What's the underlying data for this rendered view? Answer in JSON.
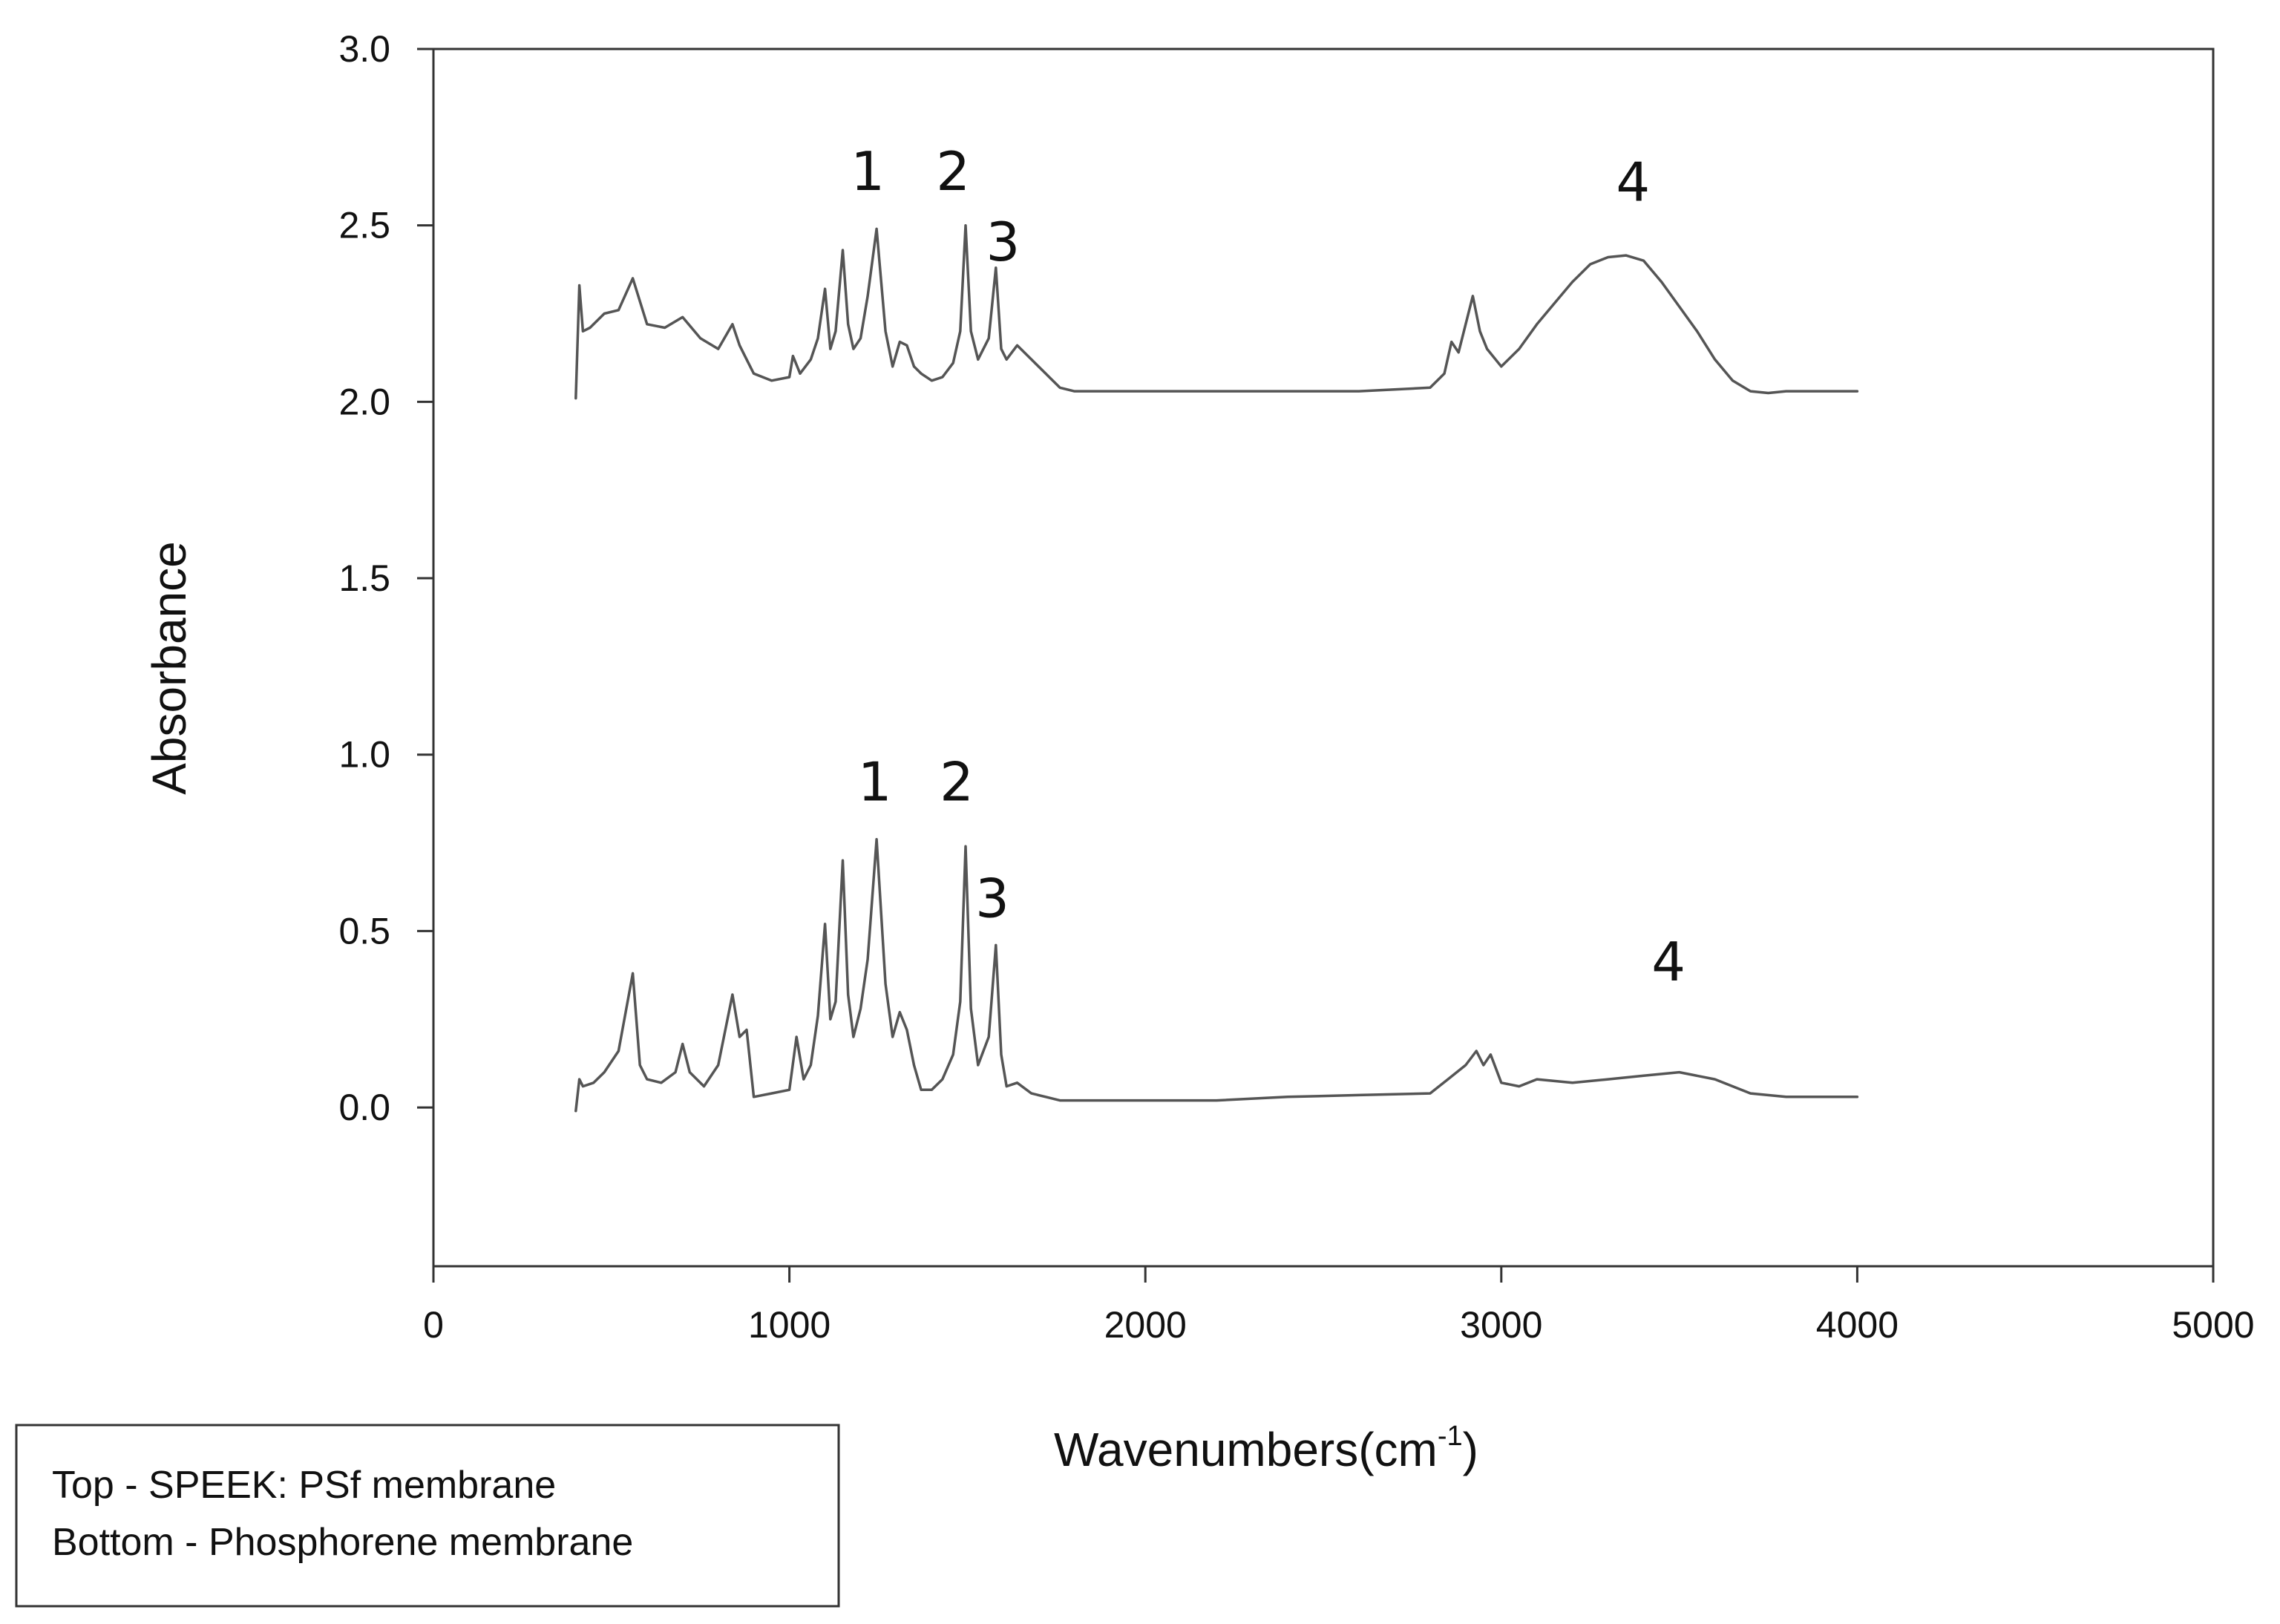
{
  "chart_data": {
    "type": "line",
    "title": "",
    "xlabel": "Wavenumbers(cm",
    "xlabel_sup": "-1",
    "xlabel_suffix": ")",
    "ylabel": "Absorbance",
    "xlim": [
      0,
      5000
    ],
    "ylim": [
      -0.45,
      3.0
    ],
    "xticks": [
      0,
      1000,
      2000,
      3000,
      4000,
      5000
    ],
    "xtick_labels": [
      "0",
      "1000",
      "2000",
      "3000",
      "4000",
      "5000"
    ],
    "yticks": [
      0.0,
      0.5,
      1.0,
      1.5,
      2.0,
      2.5,
      3.0
    ],
    "ytick_labels": [
      "0.0",
      "0.5",
      "1.0",
      "1.5",
      "2.0",
      "2.5",
      "3.0"
    ],
    "grid": false,
    "legend": {
      "placement": "bottom-left",
      "lines": [
        "Top - SPEEK: PSf membrane",
        "Bottom - Phosphorene membrane"
      ]
    },
    "series": [
      {
        "color": "#555555",
        "x": [
          400,
          410,
          420,
          440,
          480,
          520,
          560,
          600,
          650,
          700,
          750,
          800,
          840,
          860,
          880,
          900,
          950,
          1000,
          1010,
          1030,
          1060,
          1080,
          1100,
          1115,
          1130,
          1150,
          1165,
          1180,
          1200,
          1220,
          1245,
          1270,
          1290,
          1310,
          1330,
          1350,
          1370,
          1400,
          1430,
          1460,
          1480,
          1495,
          1510,
          1530,
          1560,
          1580,
          1595,
          1610,
          1640,
          1680,
          1720,
          1760,
          1800,
          2000,
          2200,
          2400,
          2600,
          2800,
          2840,
          2860,
          2880,
          2900,
          2920,
          2940,
          2960,
          3000,
          3050,
          3100,
          3150,
          3200,
          3250,
          3300,
          3350,
          3400,
          3450,
          3500,
          3550,
          3600,
          3650,
          3700,
          3750,
          3800,
          3900,
          4000
        ],
        "y": [
          2.01,
          2.33,
          2.2,
          2.21,
          2.25,
          2.26,
          2.35,
          2.22,
          2.21,
          2.24,
          2.18,
          2.15,
          2.22,
          2.16,
          2.12,
          2.08,
          2.06,
          2.07,
          2.13,
          2.08,
          2.12,
          2.18,
          2.32,
          2.15,
          2.2,
          2.43,
          2.22,
          2.15,
          2.18,
          2.3,
          2.49,
          2.2,
          2.1,
          2.17,
          2.16,
          2.1,
          2.08,
          2.06,
          2.07,
          2.11,
          2.2,
          2.5,
          2.2,
          2.12,
          2.18,
          2.38,
          2.15,
          2.12,
          2.16,
          2.12,
          2.08,
          2.04,
          2.03,
          2.03,
          2.03,
          2.03,
          2.03,
          2.04,
          2.08,
          2.17,
          2.14,
          2.22,
          2.3,
          2.2,
          2.15,
          2.1,
          2.15,
          2.22,
          2.28,
          2.34,
          2.39,
          2.41,
          2.415,
          2.4,
          2.34,
          2.27,
          2.2,
          2.12,
          2.06,
          2.03,
          2.025,
          2.03,
          2.03,
          2.03
        ]
      },
      {
        "color": "#555555",
        "x": [
          400,
          410,
          420,
          450,
          480,
          520,
          560,
          580,
          600,
          640,
          680,
          700,
          720,
          760,
          800,
          840,
          860,
          880,
          900,
          950,
          1000,
          1020,
          1040,
          1060,
          1080,
          1100,
          1115,
          1130,
          1150,
          1165,
          1180,
          1200,
          1220,
          1245,
          1270,
          1290,
          1310,
          1330,
          1350,
          1370,
          1400,
          1430,
          1460,
          1480,
          1495,
          1510,
          1530,
          1560,
          1580,
          1595,
          1610,
          1640,
          1680,
          1720,
          1760,
          1800,
          1900,
          2000,
          2200,
          2400,
          2600,
          2800,
          2850,
          2900,
          2930,
          2950,
          2970,
          3000,
          3050,
          3100,
          3200,
          3300,
          3400,
          3500,
          3600,
          3700,
          3800,
          3900,
          4000
        ],
        "y": [
          -0.01,
          0.08,
          0.06,
          0.07,
          0.1,
          0.16,
          0.38,
          0.12,
          0.08,
          0.07,
          0.1,
          0.18,
          0.1,
          0.06,
          0.12,
          0.32,
          0.2,
          0.22,
          0.03,
          0.04,
          0.05,
          0.2,
          0.08,
          0.12,
          0.26,
          0.52,
          0.25,
          0.3,
          0.7,
          0.32,
          0.2,
          0.28,
          0.42,
          0.76,
          0.35,
          0.2,
          0.27,
          0.22,
          0.12,
          0.05,
          0.05,
          0.08,
          0.15,
          0.3,
          0.74,
          0.28,
          0.12,
          0.2,
          0.46,
          0.15,
          0.06,
          0.07,
          0.04,
          0.03,
          0.02,
          0.02,
          0.02,
          0.02,
          0.02,
          0.03,
          0.035,
          0.04,
          0.08,
          0.12,
          0.16,
          0.12,
          0.15,
          0.07,
          0.06,
          0.08,
          0.07,
          0.08,
          0.09,
          0.1,
          0.08,
          0.04,
          0.03,
          0.03,
          0.03
        ]
      }
    ],
    "annotations": [
      {
        "text": "1",
        "x": 1220,
        "y": 2.6
      },
      {
        "text": "2",
        "x": 1460,
        "y": 2.6
      },
      {
        "text": "3",
        "x": 1600,
        "y": 2.4
      },
      {
        "text": "4",
        "x": 3370,
        "y": 2.57
      },
      {
        "text": "1",
        "x": 1240,
        "y": 0.87
      },
      {
        "text": "2",
        "x": 1470,
        "y": 0.87
      },
      {
        "text": "3",
        "x": 1570,
        "y": 0.54
      },
      {
        "text": "4",
        "x": 3470,
        "y": 0.36
      }
    ]
  }
}
